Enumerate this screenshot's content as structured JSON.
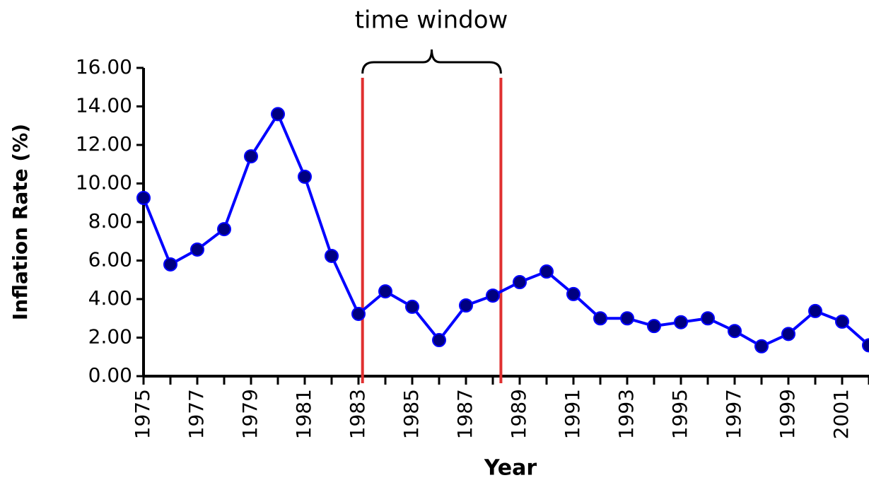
{
  "chart_data": {
    "type": "line",
    "annotation": "time window",
    "x_label": "Year",
    "y_label": "Inflation Rate (%)",
    "x": [
      1975,
      1976,
      1977,
      1978,
      1979,
      1980,
      1981,
      1982,
      1983,
      1984,
      1985,
      1986,
      1987,
      1988,
      1989,
      1990,
      1991,
      1992,
      1993,
      1994,
      1995,
      1996,
      1997,
      1998,
      1999,
      2000,
      2001,
      2002
    ],
    "values": [
      9.25,
      5.8,
      6.57,
      7.63,
      11.41,
      13.6,
      10.35,
      6.24,
      3.23,
      4.4,
      3.6,
      1.87,
      3.67,
      4.18,
      4.88,
      5.43,
      4.26,
      3.0,
      3.0,
      2.6,
      2.8,
      3.0,
      2.34,
      1.55,
      2.19,
      3.38,
      2.83,
      1.6
    ],
    "color": "#0000ff",
    "marker_color": "#000080",
    "xlim": [
      1975,
      2002
    ],
    "xticks": [
      1975,
      1977,
      1979,
      1981,
      1983,
      1985,
      1987,
      1989,
      1991,
      1993,
      1995,
      1997,
      1999,
      2001
    ],
    "ylim": [
      0,
      16
    ],
    "yticks": [
      {
        "value": 0,
        "label": "0.00"
      },
      {
        "value": 2,
        "label": "2.00"
      },
      {
        "value": 4,
        "label": "4.00"
      },
      {
        "value": 6,
        "label": "6.00"
      },
      {
        "value": 8,
        "label": "8.00"
      },
      {
        "value": 10,
        "label": "10.00"
      },
      {
        "value": 12,
        "label": "12.00"
      },
      {
        "value": 14,
        "label": "14.00"
      },
      {
        "value": 16,
        "label": "16.00"
      }
    ],
    "vlines": {
      "values": [
        1983.15,
        1988.3
      ],
      "color": "#e03030"
    }
  }
}
